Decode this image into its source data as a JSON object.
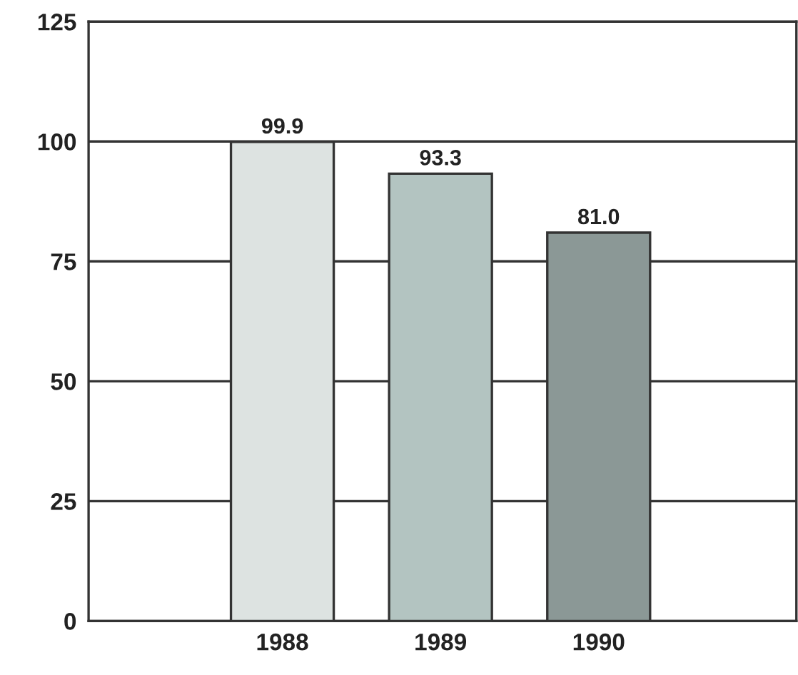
{
  "chart_data": {
    "type": "bar",
    "categories": [
      "1988",
      "1989",
      "1990"
    ],
    "values": [
      99.9,
      93.3,
      81.0
    ],
    "colors": [
      "#dde3e1",
      "#b3c4c1",
      "#8b9896"
    ],
    "value_labels": [
      "99.9",
      "93.3",
      "81.0"
    ],
    "ylim": [
      0,
      125
    ],
    "yticks": [
      0,
      25,
      50,
      75,
      100,
      125
    ],
    "grid": "y"
  }
}
